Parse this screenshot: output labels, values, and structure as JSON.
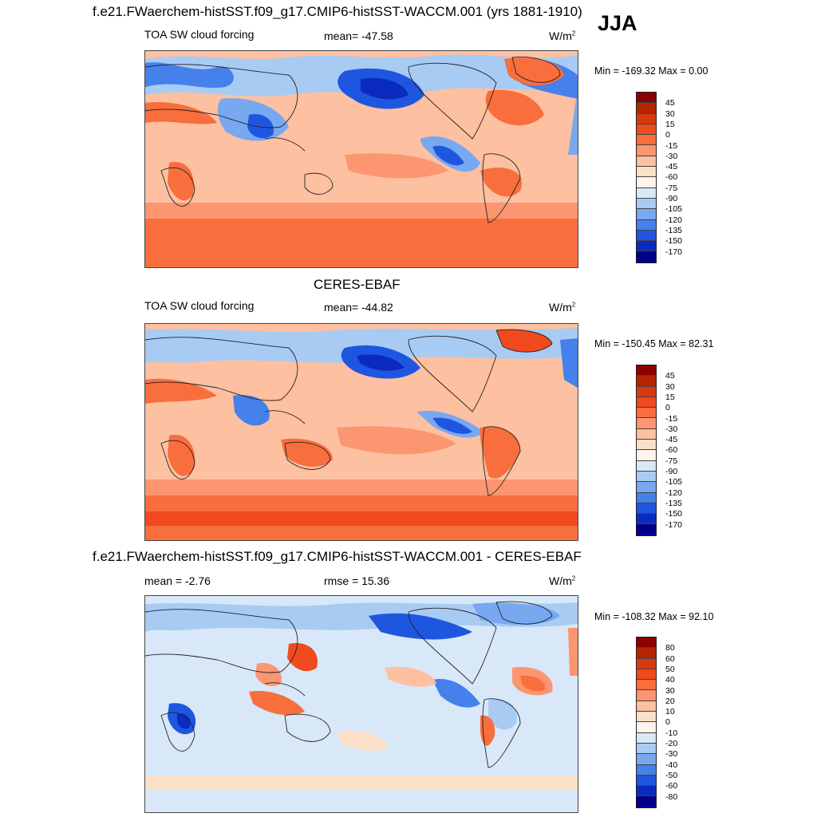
{
  "season": "JJA",
  "panels": [
    {
      "heading": "f.e21.FWaerchem-histSST.f09_g17.CMIP6-histSST-WACCM.001 (yrs 1881-1910)",
      "left_label": "TOA SW cloud forcing",
      "center_label": "mean= -47.58",
      "units": "W/m",
      "units_sup": "2",
      "minmax": "Min = -169.32 Max =   0.00",
      "colorbar": {
        "ticks": [
          "45",
          "30",
          "15",
          "0",
          "-15",
          "-30",
          "-45",
          "-60",
          "-75",
          "-90",
          "-105",
          "-120",
          "-135",
          "-150",
          "-170"
        ],
        "colors": [
          "#8b0000",
          "#b52400",
          "#d83a10",
          "#f04a1e",
          "#f86e3d",
          "#fb9670",
          "#fdc0a0",
          "#fde0c8",
          "#fff4ea",
          "#d8e8f8",
          "#a8cbf4",
          "#78a8f0",
          "#4680ea",
          "#1f56e0",
          "#0b2ac0",
          "#00008b"
        ]
      }
    },
    {
      "heading": "CERES-EBAF",
      "left_label": "TOA SW cloud forcing",
      "center_label": "mean= -44.82",
      "units": "W/m",
      "units_sup": "2",
      "minmax": "Min = -150.45 Max =  82.31",
      "colorbar": {
        "ticks": [
          "45",
          "30",
          "15",
          "0",
          "-15",
          "-30",
          "-45",
          "-60",
          "-75",
          "-90",
          "-105",
          "-120",
          "-135",
          "-150",
          "-170"
        ],
        "colors": [
          "#8b0000",
          "#b52400",
          "#d83a10",
          "#f04a1e",
          "#f86e3d",
          "#fb9670",
          "#fdc0a0",
          "#fde0c8",
          "#fff4ea",
          "#d8e8f8",
          "#a8cbf4",
          "#78a8f0",
          "#4680ea",
          "#1f56e0",
          "#0b2ac0",
          "#00008b"
        ]
      }
    },
    {
      "heading": "f.e21.FWaerchem-histSST.f09_g17.CMIP6-histSST-WACCM.001 - CERES-EBAF",
      "left_label": "mean =  -2.76",
      "center_label": "rmse =  15.36",
      "units": "W/m",
      "units_sup": "2",
      "minmax": "Min = -108.32 Max =  92.10",
      "colorbar": {
        "ticks": [
          "80",
          "60",
          "50",
          "40",
          "30",
          "20",
          "10",
          "0",
          "-10",
          "-20",
          "-30",
          "-40",
          "-50",
          "-60",
          "-80"
        ],
        "colors": [
          "#8b0000",
          "#b52400",
          "#d83a10",
          "#f04a1e",
          "#f86e3d",
          "#fb9670",
          "#fdc0a0",
          "#fde0c8",
          "#fff4ea",
          "#d8e8f8",
          "#a8cbf4",
          "#78a8f0",
          "#4680ea",
          "#1f56e0",
          "#0b2ac0",
          "#00008b"
        ]
      }
    }
  ]
}
